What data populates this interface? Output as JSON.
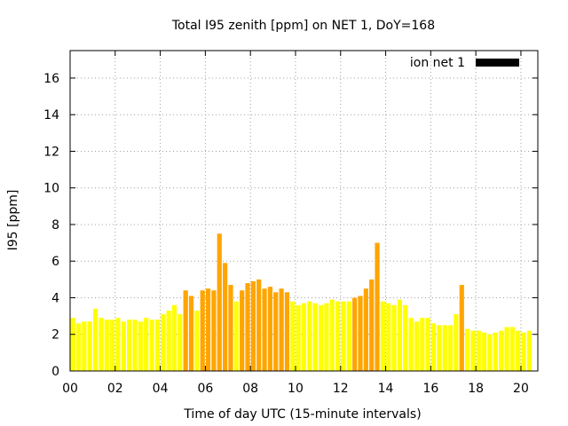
{
  "chart_data": {
    "type": "bar",
    "title": "Total I95 zenith [ppm] on NET 1, DoY=168",
    "xlabel": "Time of day UTC (15-minute intervals)",
    "ylabel": "I95 [ppm]",
    "xlim": [
      0,
      20.75
    ],
    "ylim": [
      0,
      17.5
    ],
    "x_tick_values": [
      0,
      2,
      4,
      6,
      8,
      10,
      12,
      14,
      16,
      18,
      20
    ],
    "x_tick_labels": [
      "00",
      "02",
      "04",
      "06",
      "08",
      "10",
      "12",
      "14",
      "16",
      "18",
      "20"
    ],
    "y_ticks": [
      0,
      2,
      4,
      6,
      8,
      10,
      12,
      14,
      16
    ],
    "grid": true,
    "legend": {
      "label": "ion net 1",
      "color": "#000000",
      "position": "top-right"
    },
    "colors": {
      "low": "#ffff00",
      "mid": "#ffa500",
      "axis": "#000000",
      "grid": "#a0a0a0"
    },
    "threshold_for_orange": 4.0,
    "interval_hours": 0.25,
    "values": [
      2.9,
      2.6,
      2.7,
      2.7,
      3.4,
      2.9,
      2.8,
      2.8,
      2.9,
      2.7,
      2.8,
      2.8,
      2.7,
      2.9,
      2.8,
      2.8,
      3.1,
      3.3,
      3.6,
      3.1,
      4.4,
      4.1,
      3.3,
      4.4,
      4.5,
      4.4,
      7.5,
      5.9,
      4.7,
      3.8,
      4.4,
      4.8,
      4.9,
      5.0,
      4.5,
      4.6,
      4.3,
      4.5,
      4.3,
      3.8,
      3.6,
      3.7,
      3.8,
      3.7,
      3.6,
      3.7,
      3.9,
      3.8,
      3.8,
      3.8,
      4.0,
      4.1,
      4.5,
      5.0,
      7.0,
      3.8,
      3.7,
      3.6,
      3.9,
      3.6,
      2.9,
      2.7,
      2.9,
      2.9,
      2.6,
      2.5,
      2.5,
      2.5,
      3.1,
      4.7,
      2.3,
      2.2,
      2.2,
      2.1,
      2.0,
      2.1,
      2.2,
      2.4,
      2.4,
      2.2,
      2.1,
      2.2
    ]
  }
}
